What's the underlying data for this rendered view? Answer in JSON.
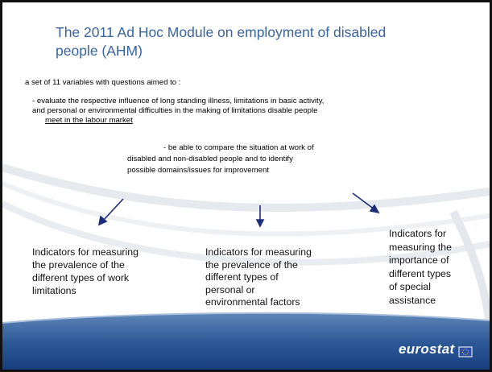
{
  "title": [
    "The 2011 Ad Hoc Module on employment of disabled",
    "people (AHM)"
  ],
  "intro": "a set of 11 variables with questions aimed to :",
  "bullets": [
    [
      "- evaluate the respective influence  of long standing illness, limitations in basic activity,",
      "and personal or environmental difficulties   in the making of limitations disable people",
      "meet in the labour market"
    ],
    [
      "- be able to compare the situation at work of",
      "disabled and non-disabled people and to identify",
      "possible domains/issues for improvement"
    ]
  ],
  "columns": [
    [
      "Indicators for measuring",
      "the prevalence of the",
      "different types of work",
      "limitations"
    ],
    [
      "Indicators for measuring",
      "the prevalence of the",
      "different types of",
      "personal or",
      "environmental factors"
    ],
    [
      "Indicators for",
      "measuring the",
      "importance of",
      "different types",
      "of special",
      "assistance"
    ]
  ],
  "logo": "eurostat"
}
